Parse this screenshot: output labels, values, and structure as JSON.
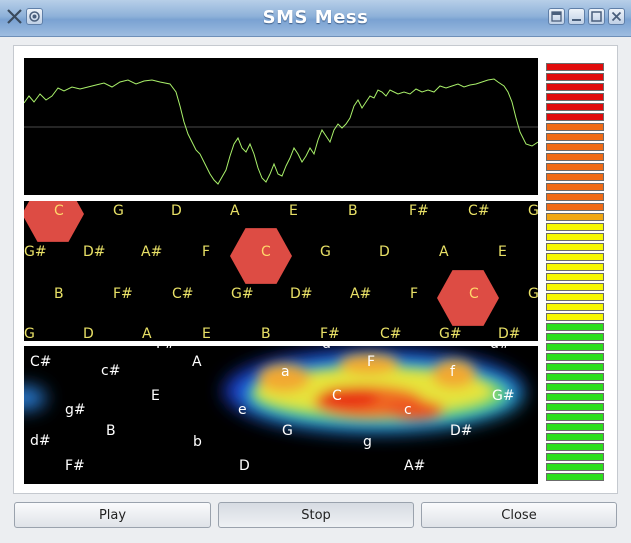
{
  "window": {
    "title": "SMS Mess"
  },
  "buttons": {
    "play": "Play",
    "stop": "Stop",
    "close": "Close"
  },
  "notes_row1": [
    "C",
    "G",
    "D",
    "A",
    "E",
    "B",
    "F#",
    "C#",
    "G"
  ],
  "notes_row2": [
    "G#",
    "D#",
    "A#",
    "F",
    "C",
    "G",
    "D",
    "A",
    "E"
  ],
  "notes_row3": [
    "B",
    "F#",
    "C#",
    "G#",
    "D#",
    "A#",
    "F",
    "C",
    "G"
  ],
  "notes_row4": [
    "G",
    "D",
    "A",
    "E",
    "B",
    "F#",
    "C#",
    "G#",
    "D#"
  ],
  "chroma_labels": [
    "F#",
    "d",
    "d#",
    "C#",
    "c#",
    "A",
    "a",
    "F",
    "f",
    "G#",
    "E",
    "e",
    "g#",
    "C",
    "c",
    "B",
    "G",
    "D#",
    "d#",
    "b",
    "g",
    "F#",
    "D",
    "A#"
  ],
  "meter_colors": [
    "#e10b0b",
    "#e10b0b",
    "#e10b0b",
    "#e10b0b",
    "#e10b0b",
    "#e10b0b",
    "#f06b16",
    "#f06b16",
    "#f06b16",
    "#f06b16",
    "#f06b16",
    "#f06b16",
    "#f06b16",
    "#f06b16",
    "#f06b16",
    "#f0a712",
    "#f7f700",
    "#f7f700",
    "#f7f700",
    "#f7f700",
    "#f7f700",
    "#f7f700",
    "#f7f700",
    "#f7f700",
    "#f7f700",
    "#f7f700",
    "#2ddf1d",
    "#2ddf1d",
    "#2ddf1d",
    "#2ddf1d",
    "#2ddf1d",
    "#2ddf1d",
    "#2ddf1d",
    "#2ddf1d",
    "#2ddf1d",
    "#2ddf1d",
    "#2ddf1d",
    "#2ddf1d",
    "#2ddf1d",
    "#2ddf1d",
    "#2ddf1d",
    "#2ddf1d"
  ]
}
